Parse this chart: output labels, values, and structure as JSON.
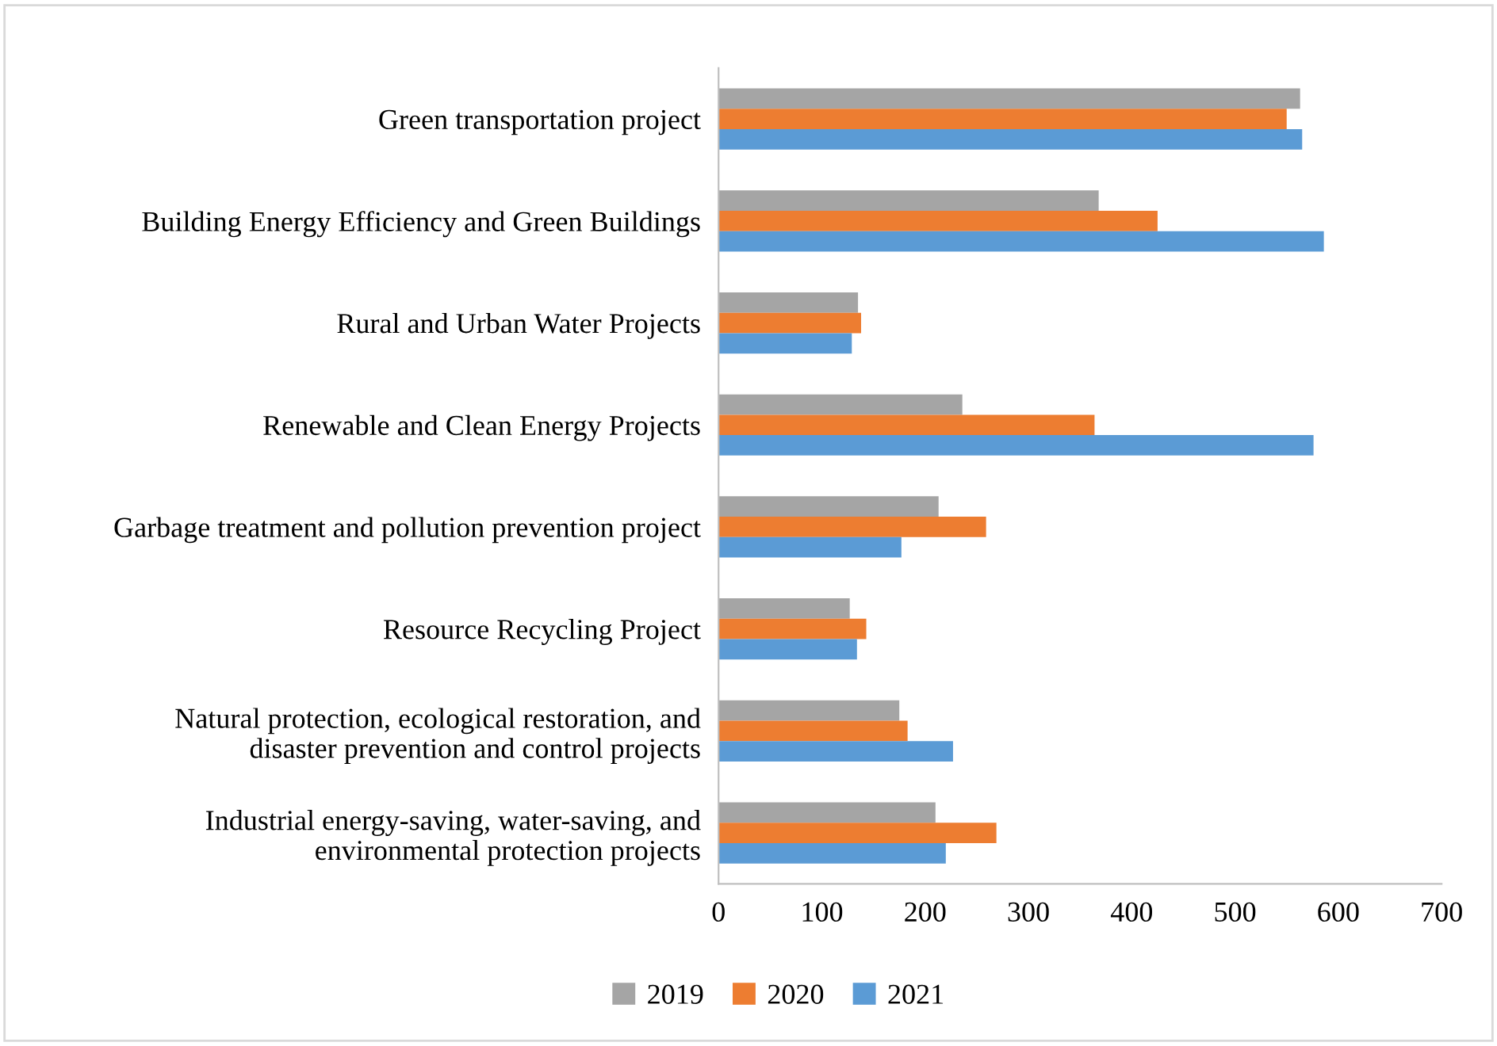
{
  "chart_data": {
    "type": "bar",
    "orientation": "horizontal",
    "categories": [
      "Green transportation project",
      "Building Energy Efficiency and Green Buildings",
      "Rural and Urban Water Projects",
      "Renewable and Clean Energy Projects",
      "Garbage treatment and pollution prevention project",
      "Resource Recycling Project",
      "Natural protection, ecological restoration, and\ndisaster prevention and control projects",
      "Industrial energy-saving, water-saving, and\nenvironmental protection projects"
    ],
    "series": [
      {
        "name": "2019",
        "color": "#a5a5a5",
        "values": [
          563,
          368,
          135,
          236,
          213,
          127,
          175,
          210
        ]
      },
      {
        "name": "2020",
        "color": "#ed7d31",
        "values": [
          550,
          425,
          138,
          364,
          259,
          143,
          183,
          269
        ]
      },
      {
        "name": "2021",
        "color": "#5b9bd5",
        "values": [
          565,
          586,
          129,
          576,
          177,
          134,
          227,
          220
        ]
      }
    ],
    "xlim": [
      0,
      700
    ],
    "xticks": [
      0,
      100,
      200,
      300,
      400,
      500,
      600,
      700
    ],
    "grid": false,
    "legend": "bottom"
  }
}
